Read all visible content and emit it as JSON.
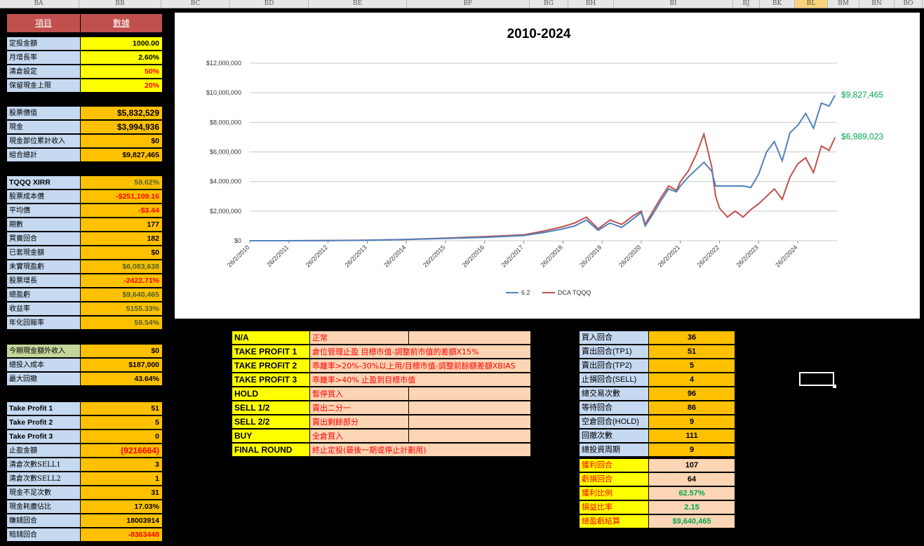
{
  "columns": [
    "BA",
    "BB",
    "BC",
    "BD",
    "BE",
    "BF",
    "BG",
    "BH",
    "BI",
    "BJ",
    "BK",
    "BL",
    "BM",
    "BN",
    "BO"
  ],
  "selected_column": "BL",
  "left_panel": {
    "header_item": "項目",
    "header_value": "數據",
    "group1": [
      {
        "label": "定投金額",
        "value": "1000.00"
      },
      {
        "label": "月增長率",
        "value": "2.60%"
      },
      {
        "label": "清倉設定",
        "value": "50%"
      },
      {
        "label": "保留現金上限",
        "value": "20%"
      }
    ],
    "group2": [
      {
        "label": "股票價值",
        "value": "$5,832,529"
      },
      {
        "label": "現金",
        "value": "$3,994,936"
      },
      {
        "label": "現金部位累計收入",
        "value": "$0"
      },
      {
        "label": "組合總計",
        "value": "$9,827,465"
      }
    ],
    "group3": [
      {
        "label": "TQQQ XIRR",
        "value": "59.62%"
      },
      {
        "label": "股票成本價",
        "value": "-$251,109.16"
      },
      {
        "label": "平均價",
        "value": "-$3.44"
      },
      {
        "label": "期數",
        "value": "177"
      },
      {
        "label": "買賣回合",
        "value": "182"
      },
      {
        "label": "已套現金額",
        "value": "$0"
      },
      {
        "label": "未實現盈虧",
        "value": "$6,083,638"
      },
      {
        "label": "股票增長",
        "value": "-2422.71%"
      },
      {
        "label": "總盈虧",
        "value": "$9,640,465"
      },
      {
        "label": "收益率",
        "value": "5155.33%"
      },
      {
        "label": "年化回報率",
        "value": "59.54%"
      }
    ],
    "group4": [
      {
        "label": "今期現金額外收入",
        "value": "$0"
      },
      {
        "label": "總投入成本",
        "value": "$187,000"
      },
      {
        "label": "最大回撤",
        "value": "43.64%"
      }
    ],
    "group5": [
      {
        "label": "Take Profit 1",
        "value": "51"
      },
      {
        "label": "Take Profit 2",
        "value": "5"
      },
      {
        "label": "Take Profit 3",
        "value": "0"
      },
      {
        "label": "止盈金額",
        "value": "(9216664)"
      },
      {
        "label": "清倉次數SELL1",
        "value": "3"
      },
      {
        "label": "清倉次數SELL2",
        "value": "1"
      },
      {
        "label": "現金不足次數",
        "value": "31"
      },
      {
        "label": "現金耗盡佔比",
        "value": "17.03%"
      },
      {
        "label": "賺錢回合",
        "value": "18003914"
      },
      {
        "label": "賠錢回合",
        "value": "-8363448"
      }
    ]
  },
  "chart_data": {
    "type": "line",
    "title": "2010-2024",
    "ylim": [
      0,
      12000000
    ],
    "yticks": [
      "$0",
      "$2,000,000",
      "$4,000,000",
      "$6,000,000",
      "$8,000,000",
      "$10,000,000",
      "$12,000,000"
    ],
    "xticks": [
      "26/2/2010",
      "26/2/2011",
      "26/2/2012",
      "26/2/2013",
      "26/2/2014",
      "26/2/2015",
      "26/2/2016",
      "26/2/2017",
      "26/2/2018",
      "26/2/2019",
      "26/2/2020",
      "26/2/2021",
      "26/2/2022",
      "26/2/2023",
      "26/2/2024"
    ],
    "x_years": [
      2010.0,
      2011.0,
      2012.0,
      2013.0,
      2014.0,
      2015.0,
      2016.0,
      2017.0,
      2017.5,
      2018.0,
      2018.3,
      2018.6,
      2018.9,
      2019.2,
      2019.5,
      2019.8,
      2020.0,
      2020.1,
      2020.3,
      2020.5,
      2020.7,
      2020.9,
      2021.0,
      2021.2,
      2021.4,
      2021.6,
      2021.8,
      2021.9,
      2022.0,
      2022.2,
      2022.4,
      2022.6,
      2022.8,
      2023.0,
      2023.2,
      2023.4,
      2023.6,
      2023.8,
      2024.0,
      2024.2,
      2024.4,
      2024.6,
      2024.8,
      2024.95
    ],
    "series": [
      {
        "name": "6.2",
        "color": "#4f81bd",
        "values": [
          0,
          0,
          10000,
          30000,
          80000,
          150000,
          230000,
          350000,
          550000,
          800000,
          1000000,
          1400000,
          700000,
          1200000,
          900000,
          1500000,
          1900000,
          1000000,
          1800000,
          2700000,
          3500000,
          3300000,
          3700000,
          4300000,
          4800000,
          5300000,
          4700000,
          3700000,
          3700000,
          3700000,
          3700000,
          3700000,
          3600000,
          4500000,
          6000000,
          6700000,
          5400000,
          7300000,
          7800000,
          8600000,
          7600000,
          9300000,
          9100000,
          9827465
        ]
      },
      {
        "name": "DCA TQQQ",
        "color": "#c0504d",
        "values": [
          0,
          0,
          10000,
          40000,
          90000,
          180000,
          280000,
          400000,
          650000,
          950000,
          1200000,
          1600000,
          800000,
          1400000,
          1100000,
          1700000,
          2000000,
          1100000,
          2000000,
          2900000,
          3700000,
          3400000,
          4000000,
          4700000,
          5800000,
          7200000,
          5000000,
          3000000,
          2200000,
          1600000,
          2000000,
          1600000,
          2100000,
          2500000,
          3000000,
          3500000,
          2800000,
          4300000,
          5200000,
          5600000,
          4600000,
          6400000,
          6100000,
          6989023
        ]
      }
    ],
    "end_labels": [
      "$9,827,465",
      "$6,989,023"
    ],
    "legend_position": "bottom"
  },
  "mid_table": [
    {
      "key": "N/A",
      "desc": "正常"
    },
    {
      "key": "TAKE PROFIT 1",
      "desc": "倉位管理止盈 目標市值-調整前市值的差額X15%"
    },
    {
      "key": "TAKE PROFIT 2",
      "desc": "乖離率>20%-30%以上用/目標市值-調整前餘額差額XBIAS"
    },
    {
      "key": "TAKE PROFIT 3",
      "desc": "乖離率>40% 止盈到目標市值"
    },
    {
      "key": "HOLD",
      "desc": "暫停買入"
    },
    {
      "key": "SELL 1/2",
      "desc": "賣出二分一"
    },
    {
      "key": "SELL 2/2",
      "desc": "賣出剩餘部分"
    },
    {
      "key": "BUY",
      "desc": "全倉買入"
    },
    {
      "key": "FINAL ROUND",
      "desc": "終止定投(最後一期或停止計劃用)"
    }
  ],
  "right_table": [
    {
      "label": "買入回合",
      "value": "36"
    },
    {
      "label": "賣出回合(TP1)",
      "value": "51"
    },
    {
      "label": "賣出回合(TP2)",
      "value": "5"
    },
    {
      "label": "止損回合(SELL)",
      "value": "4"
    },
    {
      "label": "總交易次數",
      "value": "96"
    },
    {
      "label": "等待回合",
      "value": "86"
    },
    {
      "label": "空倉回合(HOLD)",
      "value": "9"
    },
    {
      "label": "回撤次數",
      "value": "111"
    },
    {
      "label": "總投資周期",
      "value": "9"
    }
  ],
  "right_table2": [
    {
      "label": "獲利回合",
      "value": "107"
    },
    {
      "label": "虧損回合",
      "value": "64"
    },
    {
      "label": "獲利比例",
      "value": "62.57%"
    },
    {
      "label": "損益比率",
      "value": "2.15"
    },
    {
      "label": "總盈虧結算",
      "value": "$9,640,465"
    }
  ]
}
